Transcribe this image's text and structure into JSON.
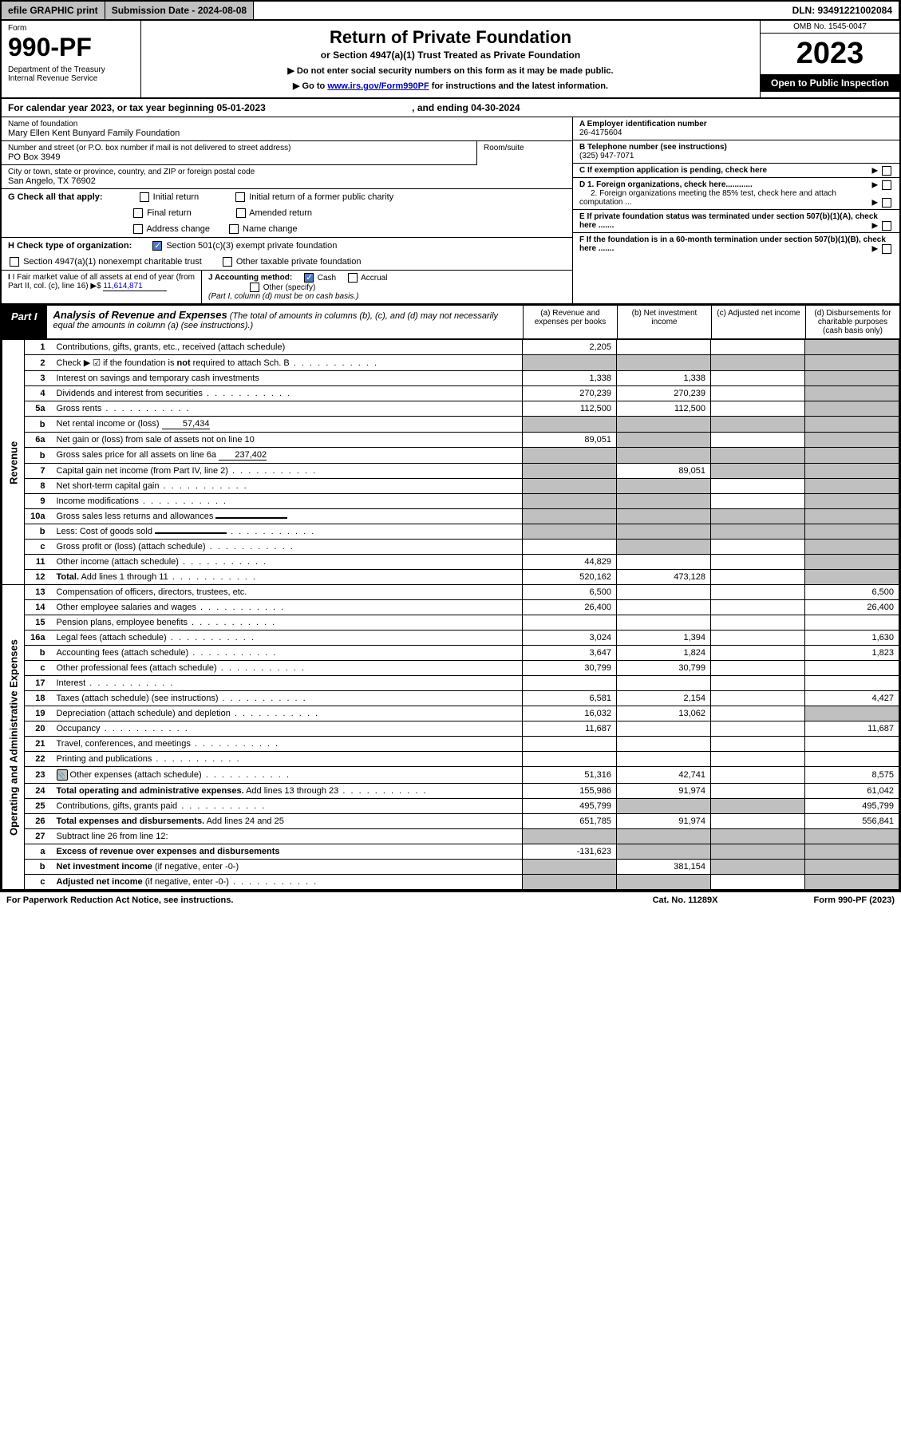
{
  "topbar": {
    "efile": "efile GRAPHIC print",
    "submission": "Submission Date - 2024-08-08",
    "dln": "DLN: 93491221002084"
  },
  "header": {
    "form_label": "Form",
    "form_number": "990-PF",
    "dept": "Department of the Treasury\nInternal Revenue Service",
    "title": "Return of Private Foundation",
    "subtitle": "or Section 4947(a)(1) Trust Treated as Private Foundation",
    "note1": "▶ Do not enter social security numbers on this form as it may be made public.",
    "note2_pre": "▶ Go to ",
    "note2_link": "www.irs.gov/Form990PF",
    "note2_post": " for instructions and the latest information.",
    "omb": "OMB No. 1545-0047",
    "year": "2023",
    "inspection": "Open to Public Inspection"
  },
  "calyear": {
    "text": "For calendar year 2023, or tax year beginning 05-01-2023",
    "middle": ", and ending 04-30-2024"
  },
  "info": {
    "name_label": "Name of foundation",
    "name": "Mary Ellen Kent Bunyard Family Foundation",
    "addr_label": "Number and street (or P.O. box number if mail is not delivered to street address)",
    "addr": "PO Box 3949",
    "room_label": "Room/suite",
    "city_label": "City or town, state or province, country, and ZIP or foreign postal code",
    "city": "San Angelo, TX  76902",
    "ein_label": "A Employer identification number",
    "ein": "26-4175604",
    "phone_label": "B Telephone number (see instructions)",
    "phone": "(325) 947-7071",
    "c_label": "C If exemption application is pending, check here",
    "d1_label": "D 1. Foreign organizations, check here............",
    "d2_label": "2. Foreign organizations meeting the 85% test, check here and attach computation ...",
    "e_label": "E  If private foundation status was terminated under section 507(b)(1)(A), check here .......",
    "f_label": "F  If the foundation is in a 60-month termination under section 507(b)(1)(B), check here .......",
    "g_label": "G Check all that apply:",
    "g_initial": "Initial return",
    "g_initial_former": "Initial return of a former public charity",
    "g_final": "Final return",
    "g_amended": "Amended return",
    "g_address": "Address change",
    "g_name": "Name change",
    "h_label": "H Check type of organization:",
    "h_501c3": "Section 501(c)(3) exempt private foundation",
    "h_4947": "Section 4947(a)(1) nonexempt charitable trust",
    "h_other": "Other taxable private foundation",
    "i_label": "I Fair market value of all assets at end of year (from Part II, col. (c), line 16)",
    "i_value": "11,614,871",
    "j_label": "J Accounting method:",
    "j_cash": "Cash",
    "j_accrual": "Accrual",
    "j_other": "Other (specify)",
    "j_note": "(Part I, column (d) must be on cash basis.)"
  },
  "part1": {
    "label": "Part I",
    "title": "Analysis of Revenue and Expenses",
    "title_note": "(The total of amounts in columns (b), (c), and (d) may not necessarily equal the amounts in column (a) (see instructions).)",
    "col_a": "(a)   Revenue and expenses per books",
    "col_b": "(b)   Net investment income",
    "col_c": "(c)   Adjusted net income",
    "col_d": "(d)   Disbursements for charitable purposes (cash basis only)"
  },
  "sections": {
    "revenue": "Revenue",
    "expenses": "Operating and Administrative Expenses"
  },
  "rows": [
    {
      "num": "1",
      "desc": "Contributions, gifts, grants, etc., received (attach schedule)",
      "a": "2,205",
      "b": "",
      "c": "",
      "d": "",
      "d_shade": true
    },
    {
      "num": "2",
      "desc": "Check ▶ ☑ if the foundation is <b>not</b> required to attach Sch. B",
      "dots": true,
      "a": "",
      "b": "",
      "c": "",
      "d": "",
      "a_shade": true,
      "b_shade": true,
      "c_shade": true,
      "d_shade": true
    },
    {
      "num": "3",
      "desc": "Interest on savings and temporary cash investments",
      "a": "1,338",
      "b": "1,338",
      "c": "",
      "d": "",
      "d_shade": true
    },
    {
      "num": "4",
      "desc": "Dividends and interest from securities",
      "dots": true,
      "a": "270,239",
      "b": "270,239",
      "c": "",
      "d": "",
      "d_shade": true
    },
    {
      "num": "5a",
      "desc": "Gross rents",
      "dots": true,
      "a": "112,500",
      "b": "112,500",
      "c": "",
      "d": "",
      "d_shade": true
    },
    {
      "num": "b",
      "desc": "Net rental income or (loss)",
      "inline_val": "57,434",
      "a": "",
      "b": "",
      "c": "",
      "d": "",
      "a_shade": true,
      "b_shade": true,
      "c_shade": true,
      "d_shade": true
    },
    {
      "num": "6a",
      "desc": "Net gain or (loss) from sale of assets not on line 10",
      "a": "89,051",
      "b": "",
      "c": "",
      "d": "",
      "b_shade": true,
      "d_shade": true
    },
    {
      "num": "b",
      "desc": "Gross sales price for all assets on line 6a",
      "inline_val": "237,402",
      "a": "",
      "b": "",
      "c": "",
      "d": "",
      "a_shade": true,
      "b_shade": true,
      "c_shade": true,
      "d_shade": true
    },
    {
      "num": "7",
      "desc": "Capital gain net income (from Part IV, line 2)",
      "dots": true,
      "a": "",
      "b": "89,051",
      "c": "",
      "d": "",
      "a_shade": true,
      "c_shade": true,
      "d_shade": true
    },
    {
      "num": "8",
      "desc": "Net short-term capital gain",
      "dots": true,
      "a": "",
      "b": "",
      "c": "",
      "d": "",
      "a_shade": true,
      "b_shade": true,
      "d_shade": true
    },
    {
      "num": "9",
      "desc": "Income modifications",
      "dots": true,
      "a": "",
      "b": "",
      "c": "",
      "d": "",
      "a_shade": true,
      "b_shade": true,
      "d_shade": true
    },
    {
      "num": "10a",
      "desc": "Gross sales less returns and allowances",
      "inline_box": true,
      "a": "",
      "b": "",
      "c": "",
      "d": "",
      "a_shade": true,
      "b_shade": true,
      "c_shade": true,
      "d_shade": true
    },
    {
      "num": "b",
      "desc": "Less: Cost of goods sold",
      "dots": true,
      "inline_box": true,
      "a": "",
      "b": "",
      "c": "",
      "d": "",
      "a_shade": true,
      "b_shade": true,
      "c_shade": true,
      "d_shade": true
    },
    {
      "num": "c",
      "desc": "Gross profit or (loss) (attach schedule)",
      "dots": true,
      "a": "",
      "b": "",
      "c": "",
      "d": "",
      "b_shade": true,
      "d_shade": true
    },
    {
      "num": "11",
      "desc": "Other income (attach schedule)",
      "dots": true,
      "a": "44,829",
      "b": "",
      "c": "",
      "d": "",
      "d_shade": true
    },
    {
      "num": "12",
      "desc": "<b>Total.</b> Add lines 1 through 11",
      "dots": true,
      "a": "520,162",
      "b": "473,128",
      "c": "",
      "d": "",
      "d_shade": true
    },
    {
      "num": "13",
      "desc": "Compensation of officers, directors, trustees, etc.",
      "a": "6,500",
      "b": "",
      "c": "",
      "d": "6,500"
    },
    {
      "num": "14",
      "desc": "Other employee salaries and wages",
      "dots": true,
      "a": "26,400",
      "b": "",
      "c": "",
      "d": "26,400"
    },
    {
      "num": "15",
      "desc": "Pension plans, employee benefits",
      "dots": true,
      "a": "",
      "b": "",
      "c": "",
      "d": ""
    },
    {
      "num": "16a",
      "desc": "Legal fees (attach schedule)",
      "dots": true,
      "a": "3,024",
      "b": "1,394",
      "c": "",
      "d": "1,630"
    },
    {
      "num": "b",
      "desc": "Accounting fees (attach schedule)",
      "dots": true,
      "a": "3,647",
      "b": "1,824",
      "c": "",
      "d": "1,823"
    },
    {
      "num": "c",
      "desc": "Other professional fees (attach schedule)",
      "dots": true,
      "a": "30,799",
      "b": "30,799",
      "c": "",
      "d": ""
    },
    {
      "num": "17",
      "desc": "Interest",
      "dots": true,
      "a": "",
      "b": "",
      "c": "",
      "d": ""
    },
    {
      "num": "18",
      "desc": "Taxes (attach schedule) (see instructions)",
      "dots": true,
      "a": "6,581",
      "b": "2,154",
      "c": "",
      "d": "4,427"
    },
    {
      "num": "19",
      "desc": "Depreciation (attach schedule) and depletion",
      "dots": true,
      "a": "16,032",
      "b": "13,062",
      "c": "",
      "d": "",
      "d_shade": true
    },
    {
      "num": "20",
      "desc": "Occupancy",
      "dots": true,
      "a": "11,687",
      "b": "",
      "c": "",
      "d": "11,687"
    },
    {
      "num": "21",
      "desc": "Travel, conferences, and meetings",
      "dots": true,
      "a": "",
      "b": "",
      "c": "",
      "d": ""
    },
    {
      "num": "22",
      "desc": "Printing and publications",
      "dots": true,
      "a": "",
      "b": "",
      "c": "",
      "d": ""
    },
    {
      "num": "23",
      "desc": "Other expenses (attach schedule)",
      "dots": true,
      "icon": true,
      "a": "51,316",
      "b": "42,741",
      "c": "",
      "d": "8,575"
    },
    {
      "num": "24",
      "desc": "<b>Total operating and administrative expenses.</b> Add lines 13 through 23",
      "dots": true,
      "a": "155,986",
      "b": "91,974",
      "c": "",
      "d": "61,042"
    },
    {
      "num": "25",
      "desc": "Contributions, gifts, grants paid",
      "dots": true,
      "a": "495,799",
      "b": "",
      "c": "",
      "d": "495,799",
      "b_shade": true,
      "c_shade": true
    },
    {
      "num": "26",
      "desc": "<b>Total expenses and disbursements.</b> Add lines 24 and 25",
      "a": "651,785",
      "b": "91,974",
      "c": "",
      "d": "556,841"
    },
    {
      "num": "27",
      "desc": "Subtract line 26 from line 12:",
      "a": "",
      "b": "",
      "c": "",
      "d": "",
      "a_shade": true,
      "b_shade": true,
      "c_shade": true,
      "d_shade": true
    },
    {
      "num": "a",
      "desc": "<b>Excess of revenue over expenses and disbursements</b>",
      "a": "-131,623",
      "b": "",
      "c": "",
      "d": "",
      "b_shade": true,
      "c_shade": true,
      "d_shade": true
    },
    {
      "num": "b",
      "desc": "<b>Net investment income</b> (if negative, enter -0-)",
      "a": "",
      "b": "381,154",
      "c": "",
      "d": "",
      "a_shade": true,
      "c_shade": true,
      "d_shade": true
    },
    {
      "num": "c",
      "desc": "<b>Adjusted net income</b> (if negative, enter -0-)",
      "dots": true,
      "a": "",
      "b": "",
      "c": "",
      "d": "",
      "a_shade": true,
      "b_shade": true,
      "d_shade": true
    }
  ],
  "footer": {
    "left": "For Paperwork Reduction Act Notice, see instructions.",
    "center": "Cat. No. 11289X",
    "right": "Form 990-PF (2023)"
  }
}
